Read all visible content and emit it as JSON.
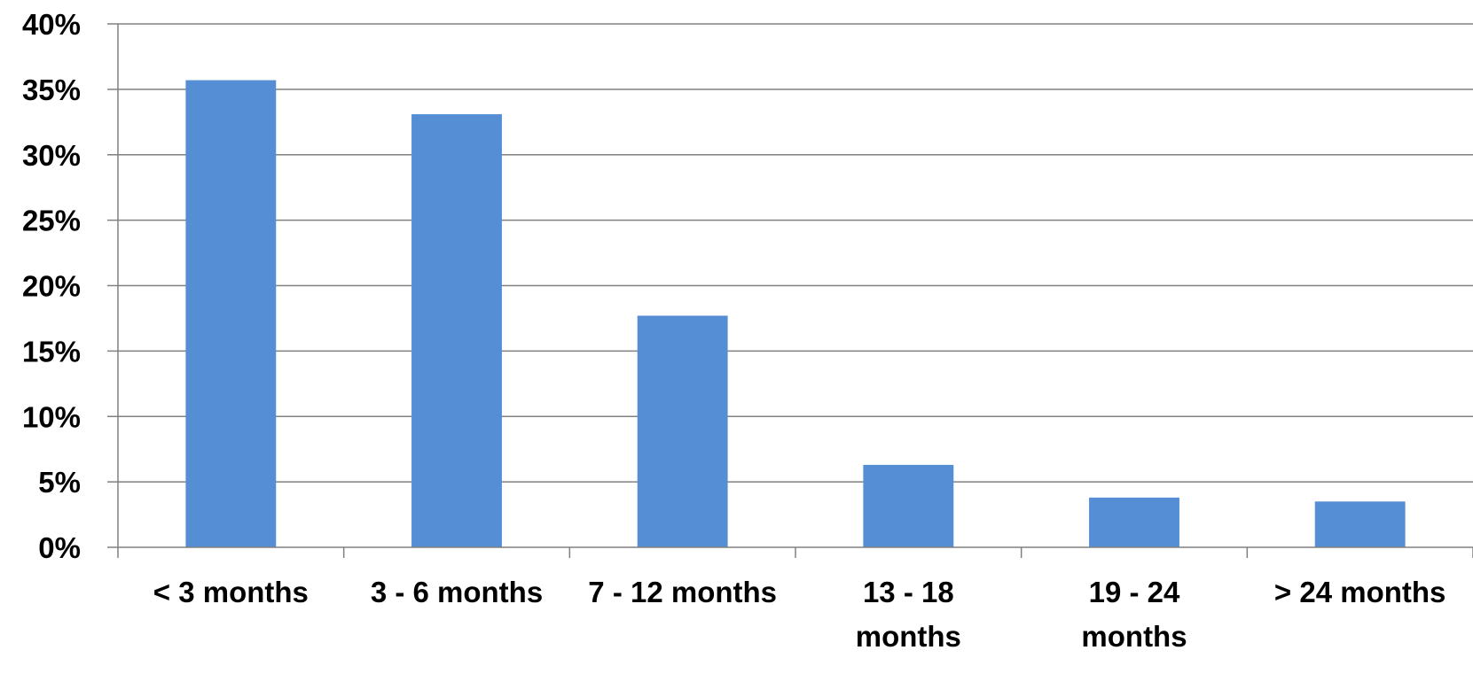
{
  "chart_data": {
    "type": "bar",
    "categories": [
      [
        "< 3 months"
      ],
      [
        "3 - 6 months"
      ],
      [
        "7 - 12 months"
      ],
      [
        "13 - 18",
        "months"
      ],
      [
        "19 - 24",
        "months"
      ],
      [
        "> 24 months"
      ]
    ],
    "values": [
      35.7,
      33.1,
      17.7,
      6.3,
      3.8,
      3.5
    ],
    "ylim": [
      0,
      40
    ],
    "yticks": [
      "0%",
      "5%",
      "10%",
      "15%",
      "20%",
      "25%",
      "30%",
      "35%",
      "40%"
    ],
    "title": "",
    "xlabel": "",
    "ylabel": "",
    "grid": true,
    "bar_color": "#558ed5",
    "gridline_color": "#808080",
    "axis_color": "#808080"
  }
}
